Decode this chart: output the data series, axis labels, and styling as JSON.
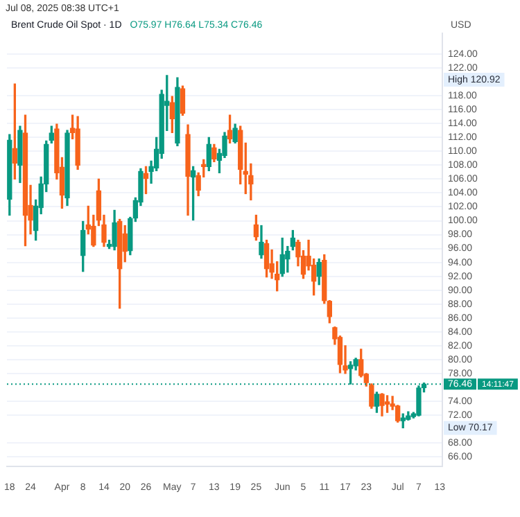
{
  "chart_data": {
    "type": "candlestick",
    "title": "Brent Crude Oil Spot · 1D",
    "subtitle": "O75.97 H76.64 L75.34 C76.46",
    "ylabel": "USD",
    "categories": [
      "18",
      null,
      null,
      null,
      "24",
      null,
      null,
      null,
      null,
      null,
      "Apr",
      null,
      null,
      null,
      "8",
      null,
      null,
      null,
      "14",
      null,
      null,
      null,
      "20",
      null,
      null,
      null,
      "26",
      null,
      null,
      null,
      null,
      "May",
      null,
      null,
      null,
      "7",
      null,
      null,
      null,
      "13",
      null,
      null,
      null,
      "19",
      null,
      null,
      null,
      "25",
      null,
      null,
      null,
      null,
      "Jun",
      null,
      null,
      null,
      "5",
      null,
      null,
      null,
      "11",
      null,
      null,
      null,
      "17",
      null,
      null,
      null,
      "23",
      null,
      null,
      null,
      null,
      null,
      "Jul",
      null,
      null,
      null,
      "7",
      null,
      null,
      null,
      "13"
    ],
    "ohlc": [
      [
        103.1,
        112.4,
        100.8,
        111.6
      ],
      [
        110.4,
        119.7,
        106.0,
        108.3
      ],
      [
        108.0,
        113.6,
        105.5,
        113.0
      ],
      [
        112.6,
        115.2,
        96.4,
        100.8
      ],
      [
        102.2,
        105.1,
        98.1,
        100.1
      ],
      [
        98.6,
        103.0,
        97.2,
        102.1
      ],
      [
        101.9,
        106.3,
        101.0,
        105.3
      ],
      [
        105.3,
        111.5,
        104.2,
        111.0
      ],
      [
        111.6,
        113.6,
        111.2,
        112.6
      ],
      [
        113.2,
        113.9,
        106.0,
        106.9
      ],
      [
        107.7,
        109.1,
        101.8,
        103.7
      ],
      [
        103.3,
        113.0,
        102.2,
        112.6
      ],
      [
        113.3,
        115.2,
        111.8,
        112.7
      ],
      [
        113.2,
        115.0,
        107.4,
        108.0
      ],
      [
        95.0,
        99.9,
        92.7,
        98.6
      ],
      [
        99.4,
        102.1,
        98.1,
        98.8
      ],
      [
        99.2,
        100.8,
        96.3,
        96.5
      ],
      [
        104.3,
        106.0,
        99.3,
        100.1
      ],
      [
        99.4,
        100.8,
        96.3,
        96.9
      ],
      [
        96.3,
        97.2,
        96.0,
        96.6
      ],
      [
        96.3,
        101.5,
        95.8,
        99.7
      ],
      [
        99.9,
        100.2,
        87.4,
        93.1
      ],
      [
        98.1,
        99.3,
        94.1,
        95.6
      ],
      [
        95.7,
        100.5,
        95.1,
        100.3
      ],
      [
        100.4,
        103.3,
        99.9,
        102.9
      ],
      [
        102.7,
        107.5,
        102.2,
        107.1
      ],
      [
        106.8,
        107.8,
        103.9,
        106.1
      ],
      [
        107.1,
        108.6,
        105.4,
        107.8
      ],
      [
        107.6,
        112.0,
        107.2,
        110.3
      ],
      [
        109.7,
        118.8,
        109.0,
        118.2
      ],
      [
        116.6,
        120.92,
        113.0,
        117.2
      ],
      [
        117.0,
        117.9,
        112.7,
        114.7
      ],
      [
        111.2,
        120.6,
        110.8,
        119.2
      ],
      [
        119.0,
        119.4,
        115.2,
        115.5
      ],
      [
        112.4,
        113.8,
        100.8,
        106.4
      ],
      [
        106.3,
        107.8,
        100.1,
        107.2
      ],
      [
        106.5,
        106.9,
        103.6,
        104.4
      ],
      [
        108.1,
        108.8,
        106.3,
        107.8
      ],
      [
        107.8,
        112.0,
        107.2,
        111.0
      ],
      [
        110.5,
        111.0,
        108.5,
        108.9
      ],
      [
        108.7,
        110.3,
        106.9,
        109.7
      ],
      [
        109.4,
        112.7,
        109.1,
        112.2
      ],
      [
        113.0,
        115.2,
        111.2,
        111.8
      ],
      [
        111.4,
        113.9,
        111.2,
        113.3
      ],
      [
        113.0,
        113.6,
        105.3,
        107.4
      ],
      [
        107.1,
        111.2,
        103.9,
        106.7
      ],
      [
        106.5,
        108.2,
        103.0,
        105.3
      ],
      [
        99.4,
        100.8,
        97.2,
        97.7
      ],
      [
        95.1,
        99.3,
        94.6,
        96.9
      ],
      [
        96.7,
        97.2,
        91.9,
        93.1
      ],
      [
        93.8,
        95.8,
        91.7,
        92.6
      ],
      [
        92.3,
        94.1,
        89.9,
        91.5
      ],
      [
        92.4,
        97.5,
        92.0,
        95.1
      ],
      [
        94.5,
        96.3,
        92.6,
        95.6
      ],
      [
        96.3,
        98.6,
        95.8,
        97.5
      ],
      [
        96.9,
        97.2,
        93.5,
        94.8
      ],
      [
        94.9,
        95.7,
        91.7,
        92.3
      ],
      [
        94.9,
        97.2,
        92.9,
        93.5
      ],
      [
        93.6,
        94.5,
        89.3,
        91.3
      ],
      [
        92.0,
        94.5,
        90.8,
        94.0
      ],
      [
        94.3,
        95.1,
        88.1,
        88.5
      ],
      [
        88.4,
        88.5,
        85.3,
        86.2
      ],
      [
        84.6,
        84.7,
        82.2,
        83.0
      ],
      [
        83.2,
        83.4,
        78.1,
        79.3
      ],
      [
        79.1,
        82.0,
        78.0,
        78.5
      ],
      [
        78.7,
        79.7,
        76.5,
        79.2
      ],
      [
        79.1,
        80.2,
        78.5,
        80.0
      ],
      [
        80.0,
        81.5,
        77.5,
        77.7
      ],
      [
        77.9,
        78.0,
        76.2,
        76.7
      ],
      [
        76.3,
        76.5,
        73.0,
        73.3
      ],
      [
        73.3,
        75.3,
        72.4,
        75.0
      ],
      [
        75.0,
        75.1,
        71.9,
        73.4
      ],
      [
        73.9,
        74.8,
        72.4,
        73.6
      ],
      [
        73.6,
        74.7,
        72.8,
        73.3
      ],
      [
        73.3,
        73.4,
        71.0,
        71.2
      ],
      [
        71.2,
        72.2,
        70.17,
        71.6
      ],
      [
        71.4,
        72.5,
        71.3,
        71.9
      ],
      [
        71.8,
        72.4,
        71.6,
        72.2
      ],
      [
        72.0,
        76.2,
        71.9,
        75.9
      ],
      [
        75.97,
        76.64,
        75.34,
        76.46
      ],
      null,
      null,
      null
    ],
    "colors": [
      "#089981",
      "#f7631b",
      "#089981",
      "#f7631b",
      "#f7631b",
      "#089981",
      "#089981",
      "#089981",
      "#089981",
      "#f7631b",
      "#f7631b",
      "#089981",
      "#f7631b",
      "#f7631b",
      "#089981",
      "#f7631b",
      "#f7631b",
      "#f7631b",
      "#f7631b",
      "#089981",
      "#089981",
      "#f7631b",
      "#f7631b",
      "#089981",
      "#089981",
      "#089981",
      "#f7631b",
      "#089981",
      "#089981",
      "#089981",
      "#089981",
      "#f7631b",
      "#089981",
      "#f7631b",
      "#f7631b",
      "#089981",
      "#f7631b",
      "#f7631b",
      "#089981",
      "#f7631b",
      "#089981",
      "#089981",
      "#f7631b",
      "#089981",
      "#f7631b",
      "#f7631b",
      "#f7631b",
      "#f7631b",
      "#089981",
      "#f7631b",
      "#f7631b",
      "#f7631b",
      "#089981",
      "#089981",
      "#089981",
      "#f7631b",
      "#f7631b",
      "#f7631b",
      "#f7631b",
      "#089981",
      "#f7631b",
      "#f7631b",
      "#f7631b",
      "#f7631b",
      "#f7631b",
      "#089981",
      "#089981",
      "#f7631b",
      "#f7631b",
      "#f7631b",
      "#089981",
      "#f7631b",
      "#f7631b",
      "#f7631b",
      "#f7631b",
      "#089981",
      "#089981",
      "#089981",
      "#089981",
      "#089981",
      null,
      null,
      null
    ],
    "ylim": [
      64.6,
      127
    ],
    "yticks": [
      {
        "value": 66,
        "label": "66.00"
      },
      {
        "value": 68,
        "label": "68.00"
      },
      {
        "value": 72,
        "label": "72.00"
      },
      {
        "value": 74,
        "label": "74.00"
      },
      {
        "value": 78,
        "label": "78.00"
      },
      {
        "value": 80,
        "label": "80.00"
      },
      {
        "value": 82,
        "label": "82.00"
      },
      {
        "value": 84,
        "label": "84.00"
      },
      {
        "value": 86,
        "label": "86.00"
      },
      {
        "value": 88,
        "label": "88.00"
      },
      {
        "value": 90,
        "label": "90.00"
      },
      {
        "value": 92,
        "label": "92.00"
      },
      {
        "value": 94,
        "label": "94.00"
      },
      {
        "value": 96,
        "label": "96.00"
      },
      {
        "value": 98,
        "label": "98.00"
      },
      {
        "value": 100,
        "label": "100.00"
      },
      {
        "value": 102,
        "label": "102.00"
      },
      {
        "value": 104,
        "label": "104.00"
      },
      {
        "value": 106,
        "label": "106.00"
      },
      {
        "value": 108,
        "label": "108.00"
      },
      {
        "value": 110,
        "label": "110.00"
      },
      {
        "value": 112,
        "label": "112.00"
      },
      {
        "value": 114,
        "label": "114.00"
      },
      {
        "value": 116,
        "label": "116.00"
      },
      {
        "value": 118,
        "label": "118.00"
      },
      {
        "value": 122,
        "label": "122.00"
      },
      {
        "value": 124,
        "label": "124.00"
      }
    ],
    "grid": "y",
    "ref_lines": [
      {
        "axis": "y",
        "value": 76.46,
        "label": "76.46",
        "color": "#089981",
        "line_style": "dotted"
      }
    ],
    "annotations": [
      "Jul 08, 2025 08:38 UTC+1",
      "High 120.92",
      "Low 70.17",
      "14:11:47"
    ]
  }
}
